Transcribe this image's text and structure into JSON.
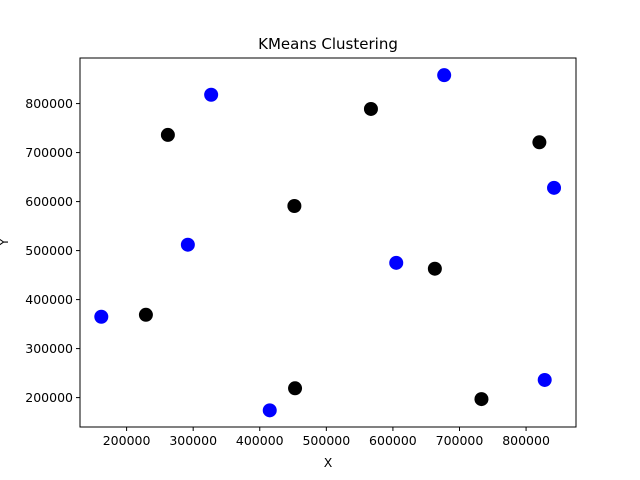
{
  "chart_data": {
    "type": "scatter",
    "title": "KMeans Clustering",
    "xlabel": "X",
    "ylabel": "Y",
    "xlim": [
      130000,
      875000
    ],
    "ylim": [
      140000,
      893000
    ],
    "xticks": [
      200000,
      300000,
      400000,
      500000,
      600000,
      700000,
      800000
    ],
    "yticks": [
      200000,
      300000,
      400000,
      500000,
      600000,
      700000,
      800000
    ],
    "grid": false,
    "series": [
      {
        "color": "#0000ff",
        "points": [
          {
            "x": 162000,
            "y": 365000
          },
          {
            "x": 292000,
            "y": 512000
          },
          {
            "x": 327000,
            "y": 818000
          },
          {
            "x": 415000,
            "y": 174000
          },
          {
            "x": 605000,
            "y": 475000
          },
          {
            "x": 677000,
            "y": 858000
          },
          {
            "x": 828000,
            "y": 236000
          },
          {
            "x": 842000,
            "y": 628000
          }
        ]
      },
      {
        "color": "#000000",
        "points": [
          {
            "x": 229000,
            "y": 369000
          },
          {
            "x": 262000,
            "y": 736000
          },
          {
            "x": 452000,
            "y": 591000
          },
          {
            "x": 453000,
            "y": 219000
          },
          {
            "x": 567000,
            "y": 789000
          },
          {
            "x": 663000,
            "y": 463000
          },
          {
            "x": 733000,
            "y": 197000
          },
          {
            "x": 820000,
            "y": 721000
          }
        ]
      }
    ]
  }
}
